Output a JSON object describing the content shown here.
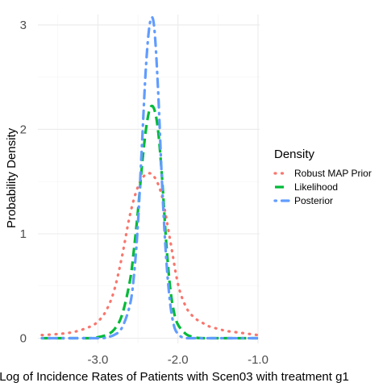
{
  "chart_data": {
    "type": "line",
    "xlabel": "Log of Incidence Rates of Patients with Scen03 with treatment g1",
    "ylabel": "Probability Density",
    "xlim": [
      -3.75,
      -0.98
    ],
    "ylim": [
      -0.05,
      3.1
    ],
    "xticks": [
      {
        "value": -3.0,
        "label": "-3.0"
      },
      {
        "value": -2.0,
        "label": "-2.0"
      },
      {
        "value": -1.0,
        "label": "-1.0"
      }
    ],
    "yticks": [
      {
        "value": 0,
        "label": "0"
      },
      {
        "value": 1,
        "label": "1"
      },
      {
        "value": 2,
        "label": "2"
      },
      {
        "value": 3,
        "label": "3"
      }
    ],
    "grid": true,
    "legend": {
      "title": "Density",
      "position": "right"
    },
    "series": [
      {
        "name": "Robust MAP Prior",
        "color": "#F8766D",
        "dash": "dotted",
        "x": [
          -3.7,
          -3.5,
          -3.3,
          -3.1,
          -3.0,
          -2.9,
          -2.8,
          -2.7,
          -2.6,
          -2.5,
          -2.4,
          -2.3,
          -2.2,
          -2.1,
          -2.0,
          -1.9,
          -1.8,
          -1.7,
          -1.6,
          -1.5,
          -1.4,
          -1.3,
          -1.2,
          -1.1,
          -1.0
        ],
        "values": [
          0.03,
          0.04,
          0.06,
          0.11,
          0.16,
          0.26,
          0.45,
          0.78,
          1.18,
          1.45,
          1.57,
          1.55,
          1.36,
          0.95,
          0.52,
          0.3,
          0.2,
          0.15,
          0.11,
          0.09,
          0.07,
          0.06,
          0.05,
          0.04,
          0.03
        ]
      },
      {
        "name": "Likelihood",
        "color": "#00BA38",
        "dash": "dashed",
        "x": [
          -3.7,
          -3.1,
          -3.0,
          -2.9,
          -2.8,
          -2.7,
          -2.6,
          -2.55,
          -2.5,
          -2.45,
          -2.4,
          -2.35,
          -2.3,
          -2.25,
          -2.2,
          -2.15,
          -2.1,
          -2.05,
          -2.0,
          -1.9,
          -1.8,
          -1.7,
          -1.5,
          -1.0
        ],
        "values": [
          0.0,
          0.0,
          0.01,
          0.03,
          0.08,
          0.22,
          0.55,
          0.85,
          1.22,
          1.65,
          2.0,
          2.2,
          2.2,
          2.0,
          1.55,
          0.95,
          0.5,
          0.25,
          0.13,
          0.04,
          0.01,
          0.0,
          0.0,
          0.0
        ]
      },
      {
        "name": "Posterior",
        "color": "#619CFF",
        "dash": "dotdash",
        "x": [
          -3.7,
          -3.0,
          -2.9,
          -2.8,
          -2.7,
          -2.6,
          -2.55,
          -2.5,
          -2.45,
          -2.4,
          -2.35,
          -2.3,
          -2.25,
          -2.2,
          -2.15,
          -2.1,
          -2.05,
          -2.0,
          -1.95,
          -1.9,
          -1.8,
          -1.5,
          -1.0
        ],
        "values": [
          0.0,
          0.0,
          0.01,
          0.03,
          0.1,
          0.32,
          0.6,
          1.1,
          1.85,
          2.6,
          3.02,
          3.0,
          2.4,
          1.5,
          0.8,
          0.35,
          0.12,
          0.04,
          0.01,
          0.0,
          0.0,
          0.0,
          0.0
        ]
      }
    ]
  }
}
